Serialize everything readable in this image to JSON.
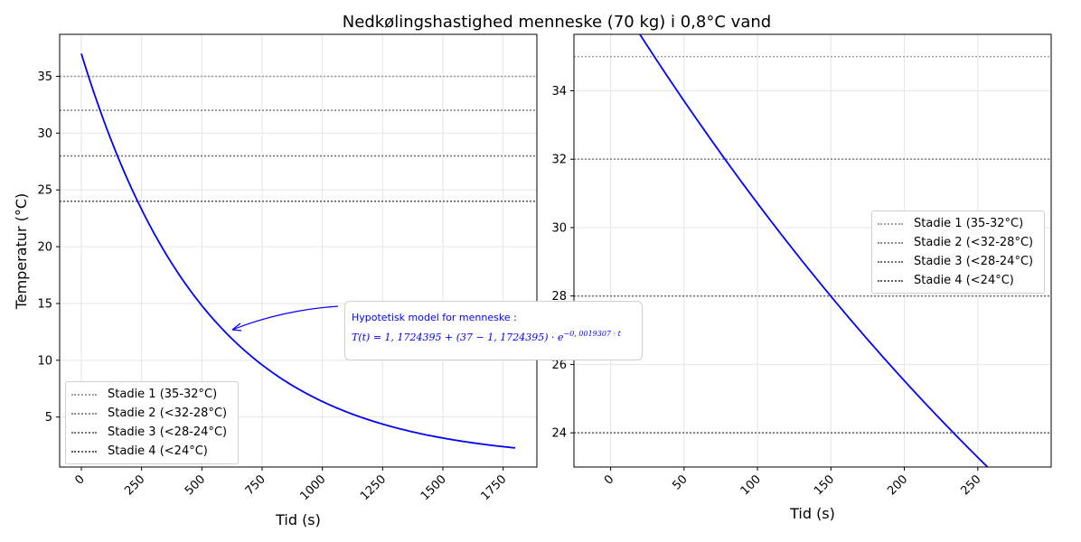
{
  "figure_title": "Nedkølingshastighed menneske (70 kg) i 0,8°C vand",
  "model": {
    "Tw": 1.1724395,
    "T0": 37,
    "k": 0.0019307
  },
  "colors": {
    "curve": "#0000ff",
    "stage1": "#a0a0a0",
    "stage2": "#8a8a8a",
    "stage3": "#747474",
    "stage4": "#5e5e5e",
    "grid": "#e6e6e6"
  },
  "annotation": {
    "line1": "Hypotetisk model for menneske :",
    "formula_main": "T(t) = 1, 1724395 + (37 − 1, 1724395) · e",
    "formula_exp": "−0, 0019307 · t"
  },
  "legend": {
    "items": [
      {
        "label": "Stadie 1 (35-32°C)",
        "color": "#a0a0a0"
      },
      {
        "label": "Stadie 2 (<32-28°C)",
        "color": "#8a8a8a"
      },
      {
        "label": "Stadie 3 (<28-24°C)",
        "color": "#747474"
      },
      {
        "label": "Stadie 4 (<24°C)",
        "color": "#5e5e5e"
      }
    ]
  },
  "chart_data": [
    {
      "type": "line",
      "title": "",
      "xlabel": "Tid (s)",
      "ylabel": "Temperatur (°C)",
      "xlim": [
        -90,
        1890
      ],
      "ylim": [
        0.6,
        38.7
      ],
      "xticks": [
        0,
        250,
        500,
        750,
        1000,
        1250,
        1500,
        1750
      ],
      "yticks": [
        5,
        10,
        15,
        20,
        25,
        30,
        35
      ],
      "grid": true,
      "legend_position": "lower-left",
      "x_range_of_series": [
        0,
        1800
      ],
      "series": [
        {
          "x": [
            0,
            100,
            200,
            300,
            400,
            500,
            600,
            700,
            800,
            900,
            1000,
            1200,
            1400,
            1600,
            1800
          ],
          "y": [
            37.0,
            30.73,
            25.55,
            21.27,
            17.73,
            14.8,
            12.38,
            10.39,
            8.73,
            7.37,
            6.24,
            4.55,
            3.39,
            2.6,
            2.07
          ]
        }
      ],
      "hlines": [
        35,
        32,
        28,
        24
      ]
    },
    {
      "type": "line",
      "title": "",
      "xlabel": "Tid (s)",
      "ylabel": "",
      "xlim": [
        -25,
        300
      ],
      "ylim": [
        23,
        35.65
      ],
      "xticks": [
        0,
        50,
        100,
        150,
        200,
        250
      ],
      "yticks": [
        24,
        26,
        28,
        30,
        32,
        34
      ],
      "grid": true,
      "legend_position": "center-right",
      "series": [
        {
          "x": [
            20,
            50,
            100,
            150,
            200,
            250,
            258
          ],
          "y": [
            35.65,
            33.78,
            30.74,
            28.01,
            25.54,
            23.3,
            22.97
          ]
        }
      ],
      "hlines": [
        35,
        32,
        28,
        24
      ]
    }
  ]
}
